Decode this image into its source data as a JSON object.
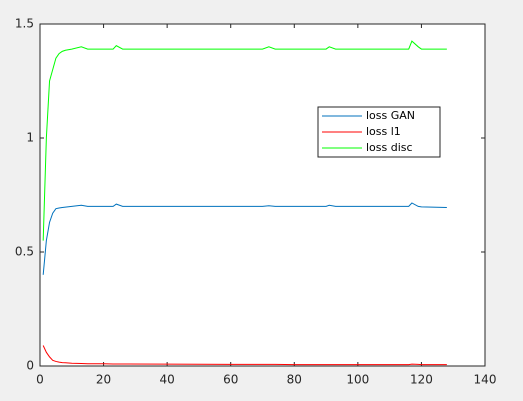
{
  "chart_data": {
    "type": "line",
    "x": [
      1,
      2,
      3,
      4,
      5,
      6,
      7,
      8,
      10,
      13,
      15,
      20,
      23,
      24,
      26,
      40,
      60,
      70,
      72,
      74,
      80,
      90,
      91,
      93,
      100,
      116,
      117,
      119,
      120,
      128
    ],
    "series": [
      {
        "name": "loss GAN",
        "color": "#0072bd",
        "values": [
          0.4,
          0.55,
          0.63,
          0.67,
          0.69,
          0.693,
          0.695,
          0.697,
          0.7,
          0.705,
          0.7,
          0.7,
          0.7,
          0.71,
          0.7,
          0.7,
          0.7,
          0.7,
          0.703,
          0.7,
          0.7,
          0.7,
          0.705,
          0.7,
          0.7,
          0.7,
          0.715,
          0.7,
          0.698,
          0.695
        ]
      },
      {
        "name": "loss l1",
        "color": "#ff0000",
        "values": [
          0.09,
          0.06,
          0.04,
          0.025,
          0.02,
          0.017,
          0.015,
          0.014,
          0.012,
          0.011,
          0.01,
          0.01,
          0.009,
          0.009,
          0.009,
          0.008,
          0.007,
          0.007,
          0.007,
          0.007,
          0.006,
          0.006,
          0.006,
          0.006,
          0.006,
          0.006,
          0.008,
          0.007,
          0.006,
          0.006
        ]
      },
      {
        "name": "loss disc",
        "color": "#00ff00",
        "values": [
          0.55,
          1.0,
          1.25,
          1.3,
          1.35,
          1.37,
          1.38,
          1.385,
          1.39,
          1.4,
          1.39,
          1.39,
          1.39,
          1.405,
          1.39,
          1.39,
          1.39,
          1.39,
          1.4,
          1.39,
          1.39,
          1.39,
          1.4,
          1.39,
          1.39,
          1.39,
          1.425,
          1.4,
          1.39,
          1.39
        ]
      }
    ],
    "xlim": [
      0,
      140
    ],
    "xticks": [
      0,
      20,
      40,
      60,
      80,
      100,
      120,
      140
    ],
    "ylim": [
      0,
      1.5
    ],
    "yticks": [
      0,
      0.5,
      1,
      1.5
    ],
    "grid": false,
    "legend_location": "northeast"
  }
}
